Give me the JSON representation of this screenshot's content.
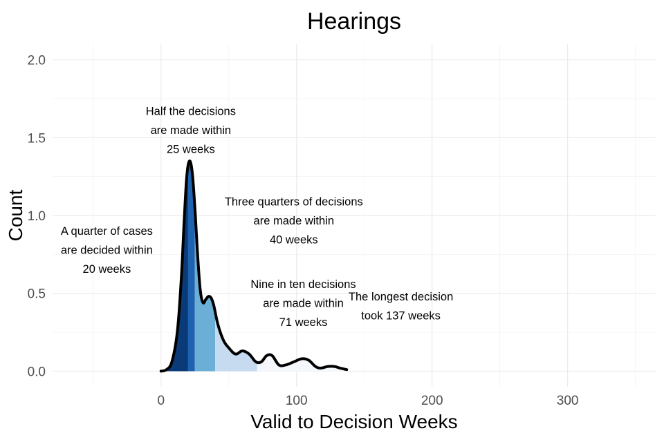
{
  "chart_data": {
    "type": "area",
    "title": "Hearings",
    "xlabel": "Valid to Decision Weeks",
    "ylabel": "Count",
    "xlim": [
      -80,
      365
    ],
    "ylim": [
      -0.1,
      2.1
    ],
    "x_ticks": [
      0,
      100,
      200,
      300
    ],
    "x_tick_labels": [
      "0",
      "100",
      "200",
      "300"
    ],
    "y_ticks": [
      0.0,
      0.5,
      1.0,
      1.5,
      2.0
    ],
    "y_tick_labels": [
      "0.0",
      "0.5",
      "1.0",
      "1.5",
      "2.0"
    ],
    "grid": true,
    "density": {
      "x": [
        0,
        4,
        8,
        12,
        15,
        17,
        19,
        21,
        23,
        25,
        27,
        29,
        31,
        33,
        35,
        37,
        39,
        42,
        46,
        50,
        55,
        60,
        65,
        70,
        74,
        78,
        82,
        87,
        92,
        98,
        104,
        109,
        114,
        118,
        123,
        128,
        132,
        137
      ],
      "y": [
        0.0,
        0.01,
        0.06,
        0.25,
        0.6,
        0.95,
        1.25,
        1.35,
        1.28,
        1.05,
        0.75,
        0.52,
        0.44,
        0.46,
        0.48,
        0.47,
        0.42,
        0.3,
        0.2,
        0.15,
        0.11,
        0.13,
        0.11,
        0.06,
        0.06,
        0.1,
        0.1,
        0.04,
        0.04,
        0.06,
        0.08,
        0.07,
        0.03,
        0.02,
        0.03,
        0.03,
        0.02,
        0.01
      ]
    },
    "quantile_bands": [
      {
        "from": 0,
        "to": 20,
        "color": "#0a3a78"
      },
      {
        "from": 20,
        "to": 25,
        "color": "#1f63b0"
      },
      {
        "from": 25,
        "to": 40,
        "color": "#6baed6"
      },
      {
        "from": 40,
        "to": 71,
        "color": "#c6dbef"
      },
      {
        "from": 71,
        "to": 137,
        "color": "#f4f8fc"
      }
    ],
    "annotations": [
      {
        "x": 22,
        "y": 1.645,
        "lines": [
          "Half the decisions",
          "are made within",
          "25 weeks"
        ]
      },
      {
        "x": 98,
        "y": 1.065,
        "lines": [
          "Three quarters of decisions",
          "are made within",
          "40 weeks"
        ]
      },
      {
        "x": -40,
        "y": 0.875,
        "lines": [
          "A quarter of cases",
          "are decided within",
          "20 weeks"
        ]
      },
      {
        "x": 105,
        "y": 0.535,
        "lines": [
          "Nine in ten decisions",
          "are made within",
          "71 weeks"
        ]
      },
      {
        "x": 177,
        "y": 0.455,
        "lines": [
          "The longest decision",
          "took 137 weeks"
        ]
      }
    ]
  }
}
